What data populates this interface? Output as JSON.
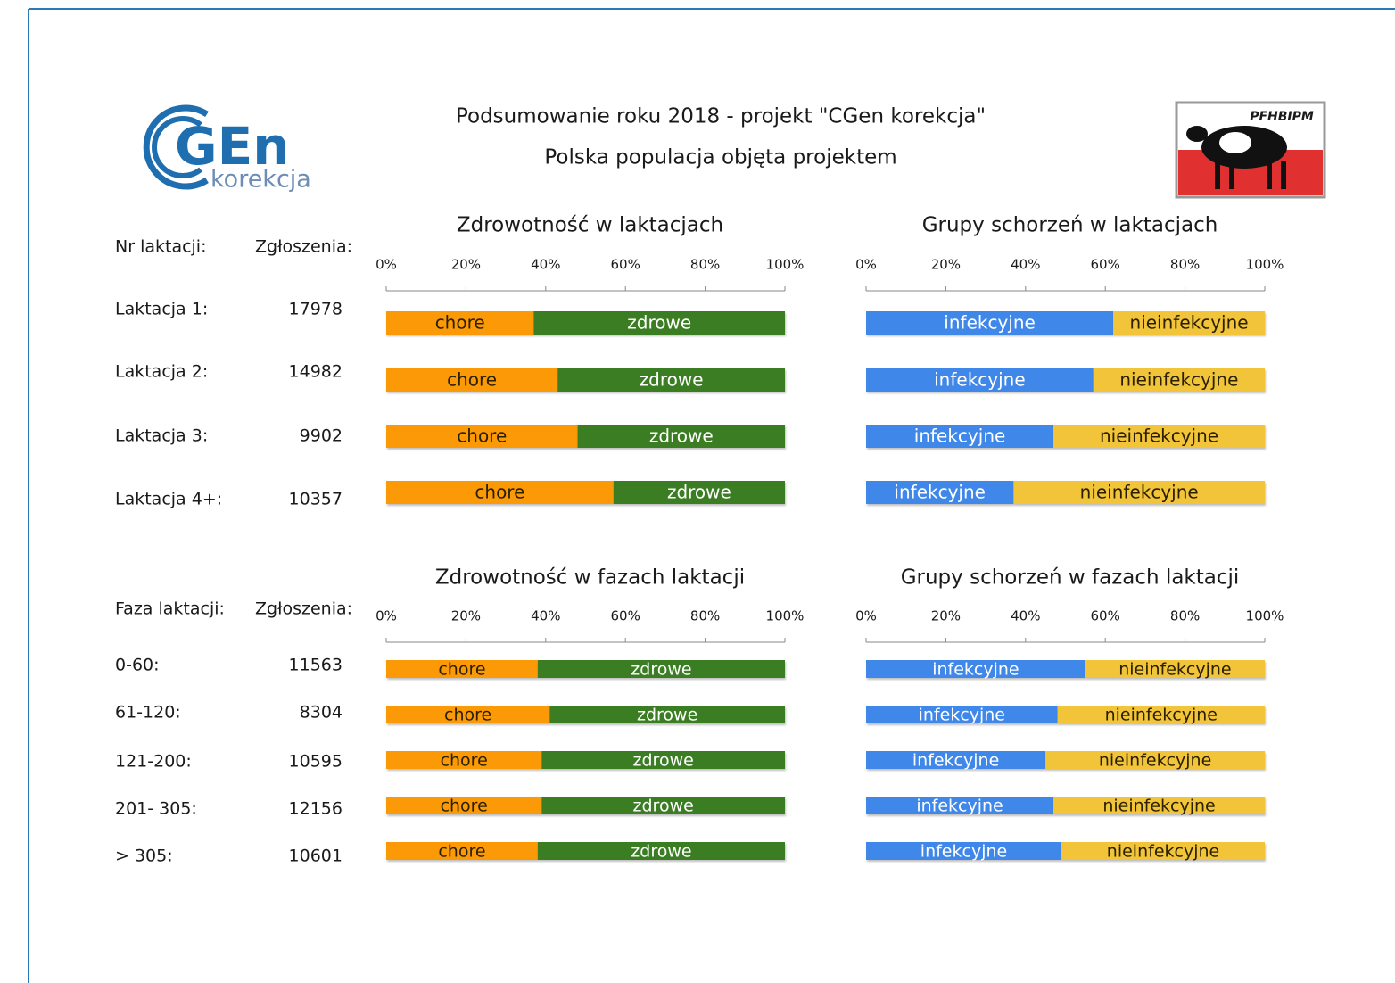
{
  "header": {
    "title": "Podsumowanie roku 2018 - projekt \"CGen korekcja\"",
    "subtitle": "Polska populacja objęta projektem",
    "logo": {
      "main": "GEn",
      "sub": "korekcja"
    },
    "badge": "PFHBIPM"
  },
  "tables": [
    {
      "headers": [
        "Nr laktacji:",
        "Zgłoszenia:"
      ],
      "rows": [
        [
          "Laktacja 1:",
          17978
        ],
        [
          "Laktacja 2:",
          14982
        ],
        [
          "Laktacja 3:",
          9902
        ],
        [
          "Laktacja 4+:",
          10357
        ]
      ]
    },
    {
      "headers": [
        "Faza laktacji:",
        "Zgłoszenia:"
      ],
      "rows": [
        [
          "0-60:",
          11563
        ],
        [
          "61-120:",
          8304
        ],
        [
          "121-200:",
          10595
        ],
        [
          "201- 305:",
          12156
        ],
        [
          "> 305:",
          10601
        ]
      ]
    }
  ],
  "chart_data": [
    {
      "type": "stacked-hbar",
      "title": "Zdrowotność w laktacjach",
      "xlim": [
        0,
        100
      ],
      "xticks": [
        {
          "value": 0,
          "label": "0%"
        },
        {
          "value": 20,
          "label": "20%"
        },
        {
          "value": 40,
          "label": "40%"
        },
        {
          "value": 60,
          "label": "60%"
        },
        {
          "value": 80,
          "label": "80%"
        },
        {
          "value": 100,
          "label": "100%"
        }
      ],
      "series": [
        {
          "name": "chore",
          "color": "#fb9a06",
          "values": [
            37,
            43,
            48,
            57
          ]
        },
        {
          "name": "zdrowe",
          "color": "#3b7d23",
          "values": [
            63,
            57,
            52,
            43
          ]
        }
      ]
    },
    {
      "type": "stacked-hbar",
      "title": "Grupy schorzeń w laktacjach",
      "xlim": [
        0,
        100
      ],
      "xticks": [
        {
          "value": 0,
          "label": "0%"
        },
        {
          "value": 20,
          "label": "20%"
        },
        {
          "value": 40,
          "label": "40%"
        },
        {
          "value": 60,
          "label": "60%"
        },
        {
          "value": 80,
          "label": "80%"
        },
        {
          "value": 100,
          "label": "100%"
        }
      ],
      "series": [
        {
          "name": "infekcyjne",
          "color": "#3f87e8",
          "values": [
            62,
            57,
            47,
            37
          ]
        },
        {
          "name": "nieinfekcyjne",
          "color": "#f2c43a",
          "values": [
            38,
            43,
            53,
            63
          ]
        }
      ]
    },
    {
      "type": "stacked-hbar",
      "title": "Zdrowotność w fazach laktacji",
      "xlim": [
        0,
        100
      ],
      "xticks": [
        {
          "value": 0,
          "label": "0%"
        },
        {
          "value": 20,
          "label": "20%"
        },
        {
          "value": 40,
          "label": "40%"
        },
        {
          "value": 60,
          "label": "60%"
        },
        {
          "value": 80,
          "label": "80%"
        },
        {
          "value": 100,
          "label": "100%"
        }
      ],
      "series": [
        {
          "name": "chore",
          "color": "#fb9a06",
          "values": [
            38,
            41,
            39,
            39,
            38
          ]
        },
        {
          "name": "zdrowe",
          "color": "#3b7d23",
          "values": [
            62,
            59,
            61,
            61,
            62
          ]
        }
      ]
    },
    {
      "type": "stacked-hbar",
      "title": "Grupy schorzeń w fazach laktacji",
      "xlim": [
        0,
        100
      ],
      "xticks": [
        {
          "value": 0,
          "label": "0%"
        },
        {
          "value": 20,
          "label": "20%"
        },
        {
          "value": 40,
          "label": "40%"
        },
        {
          "value": 60,
          "label": "60%"
        },
        {
          "value": 80,
          "label": "80%"
        },
        {
          "value": 100,
          "label": "100%"
        }
      ],
      "series": [
        {
          "name": "infekcyjne",
          "color": "#3f87e8",
          "values": [
            55,
            48,
            45,
            47,
            49
          ]
        },
        {
          "name": "nieinfekcyjne",
          "color": "#f2c43a",
          "values": [
            45,
            52,
            55,
            53,
            51
          ]
        }
      ]
    }
  ]
}
